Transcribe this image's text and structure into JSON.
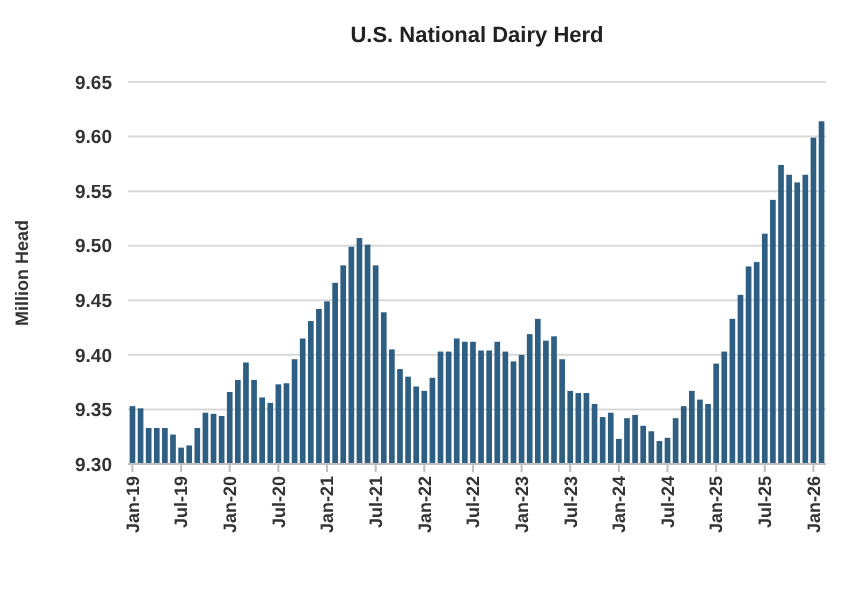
{
  "chart_data": {
    "type": "bar",
    "title": "U.S. National Dairy Herd",
    "ylabel": "Million Head",
    "categories": [
      "Jan-19",
      null,
      null,
      null,
      null,
      null,
      "Jul-19",
      null,
      null,
      null,
      null,
      null,
      "Jan-20",
      null,
      null,
      null,
      null,
      null,
      "Jul-20",
      null,
      null,
      null,
      null,
      null,
      "Jan-21",
      null,
      null,
      null,
      null,
      null,
      "Jul-21",
      null,
      null,
      null,
      null,
      null,
      "Jan-22",
      null,
      null,
      null,
      null,
      null,
      "Jul-22",
      null,
      null,
      null,
      null,
      null,
      "Jan-23",
      null,
      null,
      null,
      null,
      null,
      "Jul-23",
      null,
      null,
      null,
      null,
      null,
      "Jan-24",
      null,
      null,
      null,
      null,
      null,
      "Jul-24",
      null,
      null,
      null,
      null,
      null,
      "Jan-25",
      null,
      null,
      null,
      null,
      null,
      "Jul-25",
      null,
      null,
      null,
      null,
      null,
      "Jan-26",
      null
    ],
    "values": [
      9.353,
      9.351,
      9.333,
      9.333,
      9.333,
      9.327,
      9.315,
      9.317,
      9.333,
      9.347,
      9.346,
      9.344,
      9.366,
      9.377,
      9.393,
      9.377,
      9.361,
      9.356,
      9.373,
      9.374,
      9.396,
      9.415,
      9.431,
      9.442,
      9.449,
      9.466,
      9.482,
      9.499,
      9.507,
      9.501,
      9.482,
      9.439,
      9.405,
      9.387,
      9.38,
      9.371,
      9.367,
      9.379,
      9.403,
      9.403,
      9.415,
      9.412,
      9.412,
      9.404,
      9.404,
      9.412,
      9.403,
      9.394,
      9.4,
      9.419,
      9.433,
      9.413,
      9.417,
      9.396,
      9.367,
      9.365,
      9.365,
      9.355,
      9.343,
      9.347,
      9.323,
      9.342,
      9.345,
      9.335,
      9.33,
      9.321,
      9.324,
      9.342,
      9.353,
      9.367,
      9.359,
      9.355,
      9.392,
      9.403,
      9.433,
      9.455,
      9.481,
      9.485,
      9.511,
      9.542,
      9.574,
      9.565,
      9.558,
      9.565,
      9.599,
      9.614
    ],
    "color": "#2e5f82",
    "ylim": [
      9.3,
      9.65
    ],
    "yticks": [
      {
        "value": 9.3,
        "label": "9.30"
      },
      {
        "value": 9.35,
        "label": "9.35"
      },
      {
        "value": 9.4,
        "label": "9.40"
      },
      {
        "value": 9.45,
        "label": "9.45"
      },
      {
        "value": 9.5,
        "label": "9.50"
      },
      {
        "value": 9.55,
        "label": "9.55"
      },
      {
        "value": 9.6,
        "label": "9.60"
      },
      {
        "value": 9.65,
        "label": "9.65"
      }
    ],
    "grid": "y"
  }
}
